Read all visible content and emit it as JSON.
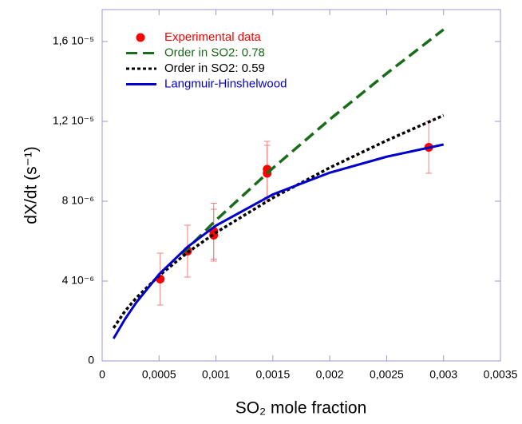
{
  "chart_data": {
    "type": "scatter",
    "x_label": "SO₂ mole fraction",
    "y_label": "dX/dt (s⁻¹)",
    "xlim": [
      0,
      0.0035
    ],
    "ylim": [
      0,
      1.76e-05
    ],
    "xticks": [
      0,
      {
        "value": 0.0005,
        "label": "0,0005"
      },
      {
        "value": 0.001,
        "label": "0,001"
      },
      {
        "value": 0.0015,
        "label": "0,0015"
      },
      {
        "value": 0.002,
        "label": "0,002"
      },
      {
        "value": 0.0025,
        "label": "0,0025"
      },
      {
        "value": 0.003,
        "label": "0,003"
      },
      {
        "value": 0.0035,
        "label": "0,0035"
      }
    ],
    "yticks": [
      0,
      {
        "value": 4e-06,
        "label": "4 10⁻⁶"
      },
      {
        "value": 8e-06,
        "label": "8 10⁻⁶"
      },
      {
        "value": 1.2e-05,
        "label": "1,2 10⁻⁵"
      },
      {
        "value": 1.6e-05,
        "label": "1,6 10⁻⁵"
      }
    ],
    "legend": "upper left",
    "series": [
      {
        "name": "Experimental data",
        "color": "#ff0000",
        "mode": "markers",
        "x": [
          0.00051,
          0.00075,
          0.00098,
          0.00098,
          0.00145,
          0.00145,
          0.00287
        ],
        "values": [
          4.1e-06,
          5.5e-06,
          6.5e-06,
          6.3e-06,
          9.6e-06,
          9.4e-06,
          1.07e-05
        ],
        "errors": [
          1.3e-06,
          1.3e-06,
          1.4e-06,
          1.3e-06,
          1.4e-06,
          1.4e-06,
          1.3e-06
        ]
      },
      {
        "name": "Order in SO2: 0.78",
        "color": "#1a6b1a",
        "mode": "line",
        "dash": "dashed",
        "x": [
          0.0007,
          0.001,
          0.0015,
          0.002,
          0.0025,
          0.003
        ],
        "values": [
          5.34e-06,
          7.05e-06,
          9.66e-06,
          1.21e-05,
          1.44e-05,
          1.66e-05
        ]
      },
      {
        "name": "Order in SO2: 0.59",
        "color": "#000000",
        "mode": "line",
        "dash": "dotted",
        "x": [
          0.0001,
          0.0002,
          0.0003,
          0.0005,
          0.00075,
          0.001,
          0.0015,
          0.002,
          0.0025,
          0.003
        ],
        "values": [
          1.65e-06,
          2.49e-06,
          3.16e-06,
          4.27e-06,
          5.43e-06,
          6.43e-06,
          8.17e-06,
          9.68e-06,
          1.104e-05,
          1.23e-05
        ]
      },
      {
        "name": "Langmuir-Hinshelwood",
        "color": "#0000cc",
        "mode": "line",
        "dash": "solid",
        "x": [
          0.0001,
          0.0002,
          0.0003,
          0.0005,
          0.00075,
          0.001,
          0.0015,
          0.002,
          0.0025,
          0.003
        ],
        "values": [
          1.12e-06,
          2.09e-06,
          2.93e-06,
          4.34e-06,
          5.71e-06,
          6.78e-06,
          8.34e-06,
          9.43e-06,
          1.023e-05,
          1.084e-05
        ]
      }
    ]
  }
}
